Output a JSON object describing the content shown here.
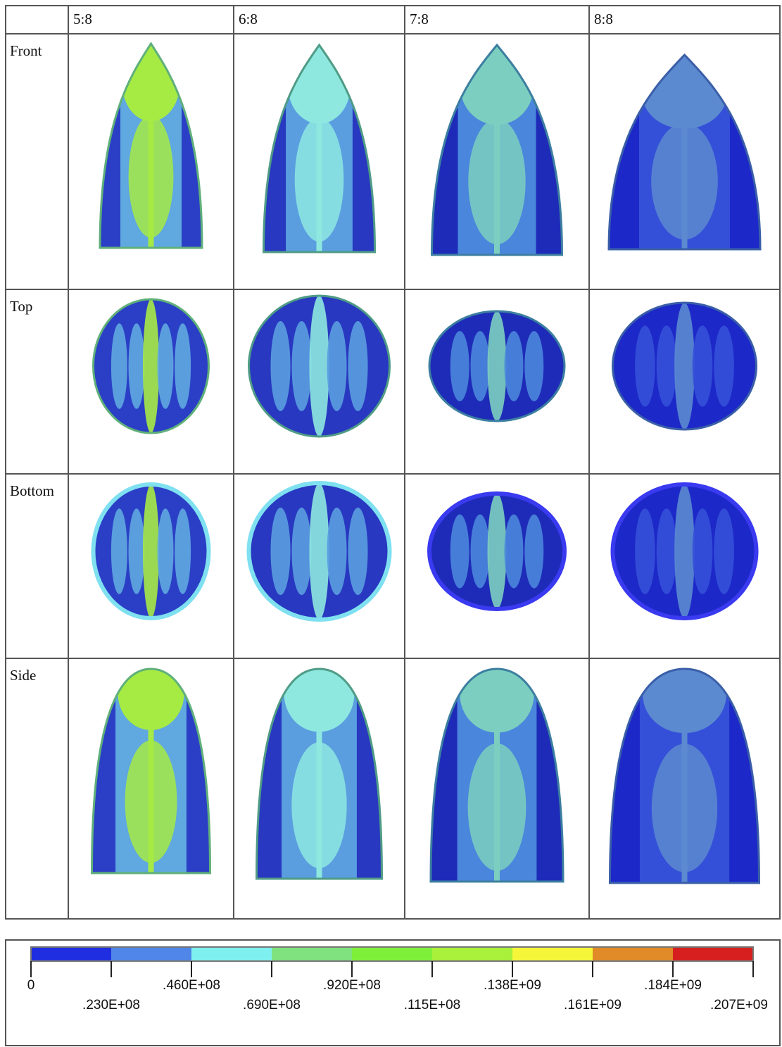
{
  "table": {
    "columns": [
      "5:8",
      "6:8",
      "7:8",
      "8:8"
    ],
    "rows": [
      "Front",
      "Top",
      "Bottom",
      "Side"
    ]
  },
  "legend": {
    "labels": [
      "0",
      ".230E+08",
      ".460E+08",
      ".690E+08",
      ".920E+08",
      ".115E+08",
      ".138E+09",
      ".161E+09",
      ".184E+09",
      ".207E+09"
    ],
    "colors": [
      "#1f2ee0",
      "#4f86e8",
      "#7ff0f0",
      "#7fe27f",
      "#7ff03a",
      "#a8f03a",
      "#f5f53a",
      "#e08a28",
      "#d62020"
    ]
  }
}
